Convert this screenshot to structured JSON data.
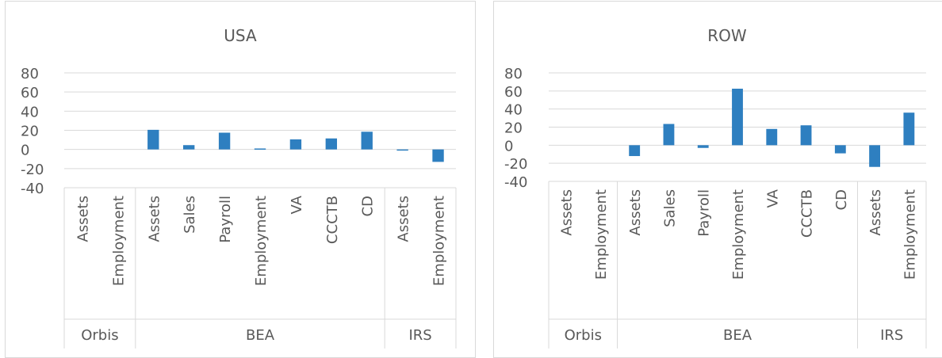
{
  "chart_data": [
    {
      "type": "bar",
      "title": "USA",
      "groups": [
        {
          "label": "Orbis",
          "categories": [
            "Assets",
            "Employment"
          ]
        },
        {
          "label": "BEA",
          "categories": [
            "Assets",
            "Sales",
            "Payroll",
            "Employment",
            "VA",
            "CCCTB",
            "CD"
          ]
        },
        {
          "label": "IRS",
          "categories": [
            "Assets",
            "Employment"
          ]
        }
      ],
      "values": [
        null,
        null,
        20.5,
        4.5,
        17.5,
        1,
        10.5,
        11.5,
        18.5,
        -1,
        -13
      ],
      "ylim": [
        -40,
        80
      ],
      "yticks": [
        "80",
        "60",
        "40",
        "20",
        "0",
        "-20",
        "-40"
      ],
      "color": "#2e7fc0",
      "grid": true,
      "legend": "none"
    },
    {
      "type": "bar",
      "title": "ROW",
      "groups": [
        {
          "label": "Orbis",
          "categories": [
            "Assets",
            "Employment"
          ]
        },
        {
          "label": "BEA",
          "categories": [
            "Assets",
            "Sales",
            "Payroll",
            "Employment",
            "VA",
            "CCCTB",
            "CD"
          ]
        },
        {
          "label": "IRS",
          "categories": [
            "Assets",
            "Employment"
          ]
        }
      ],
      "values": [
        null,
        null,
        -12,
        23.5,
        -3,
        62.5,
        18,
        22,
        -9,
        -24,
        36
      ],
      "ylim": [
        -40,
        80
      ],
      "yticks": [
        "80",
        "60",
        "40",
        "20",
        "0",
        "-20",
        "-40"
      ],
      "color": "#2e7fc0",
      "grid": true,
      "legend": "none"
    }
  ]
}
